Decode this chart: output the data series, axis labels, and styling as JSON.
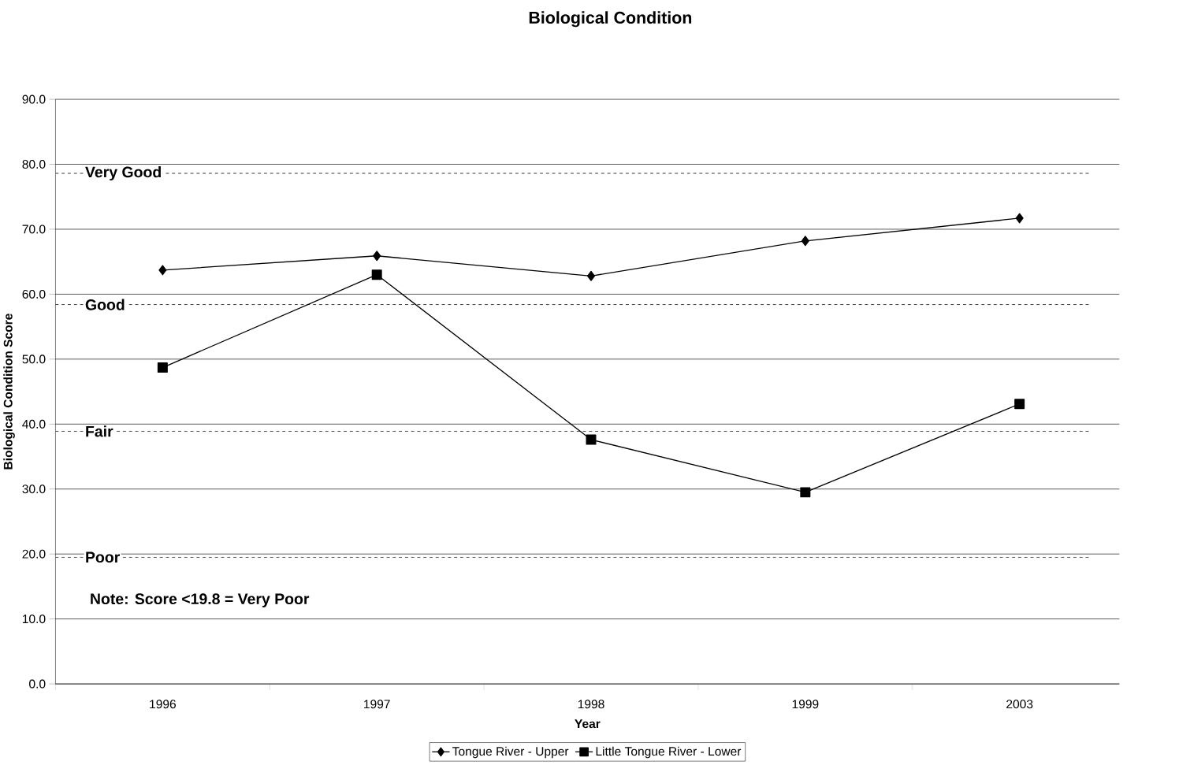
{
  "chart_data": {
    "type": "line",
    "title": "Biological Condition",
    "xlabel": "Year",
    "ylabel": "Biological Condition Score",
    "categories": [
      "1996",
      "1997",
      "1998",
      "1999",
      "2003"
    ],
    "series": [
      {
        "name": "Tongue River - Upper",
        "color": "#000000",
        "marker": "diamond",
        "values": [
          63.7,
          65.9,
          62.8,
          68.2,
          71.7
        ]
      },
      {
        "name": "Little Tongue River - Lower",
        "color": "#000000",
        "marker": "square",
        "values": [
          48.7,
          63.0,
          37.6,
          29.5,
          43.1
        ]
      }
    ],
    "ylim": [
      0,
      90
    ],
    "yticks": [
      {
        "value": 0,
        "label": "0.0"
      },
      {
        "value": 10,
        "label": "10.0"
      },
      {
        "value": 20,
        "label": "20.0"
      },
      {
        "value": 30,
        "label": "30.0"
      },
      {
        "value": 40,
        "label": "40.0"
      },
      {
        "value": 50,
        "label": "50.0"
      },
      {
        "value": 60,
        "label": "60.0"
      },
      {
        "value": 70,
        "label": "70.0"
      },
      {
        "value": 80,
        "label": "80.0"
      },
      {
        "value": 90,
        "label": "90.0"
      }
    ],
    "grid": "y",
    "legend": "bottom",
    "line_style": "solid",
    "ref_lines": [
      {
        "axis": "y",
        "value": 78.6,
        "label": "Very Good",
        "color": "#000000",
        "line_style": "dashed"
      },
      {
        "axis": "y",
        "value": 58.4,
        "label": "Good",
        "color": "#000000",
        "line_style": "dashed"
      },
      {
        "axis": "y",
        "value": 38.9,
        "label": "Fair",
        "color": "#000000",
        "line_style": "dashed"
      },
      {
        "axis": "y",
        "value": 19.5,
        "label": "Poor",
        "color": "#000000",
        "line_style": "dashed"
      }
    ],
    "annotations": [
      "Note: Score <19.8 = Very Poor"
    ]
  }
}
